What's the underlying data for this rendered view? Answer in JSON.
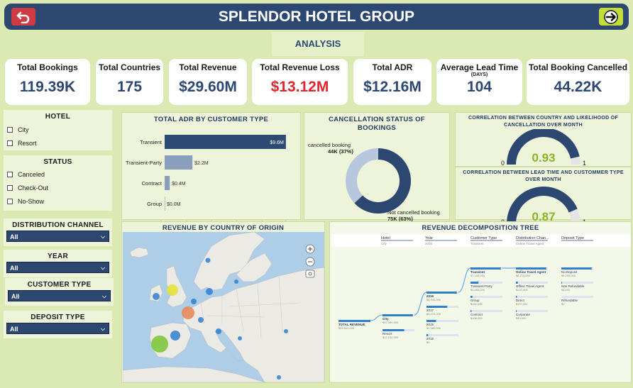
{
  "header": {
    "title": "SPLENDOR HOTEL GROUP",
    "back_icon": "back-arrow-icon",
    "forward_icon": "forward-arrow-icon",
    "page_button": "ANALYSIS"
  },
  "kpis": [
    {
      "label": "Total Bookings",
      "value": "119.39K"
    },
    {
      "label": "Total Countries",
      "value": "175"
    },
    {
      "label": "Total Revenue",
      "value": "$29.60M"
    },
    {
      "label": "Total Revenue Loss",
      "value": "$13.12M"
    },
    {
      "label": "Total ADR",
      "value": "$12.16M"
    },
    {
      "label": "Average Lead Time",
      "sub": "(DAYS)",
      "value": "104"
    },
    {
      "label": "Total Booking Cancelled",
      "value": "44.22K"
    }
  ],
  "slicers": {
    "hotel": {
      "title": "HOTEL",
      "options": [
        "City",
        "Resort"
      ]
    },
    "status": {
      "title": "STATUS",
      "options": [
        "Canceled",
        "Check-Out",
        "No-Show"
      ]
    },
    "distribution": {
      "title": "DISTRIBUTION CHANNEL",
      "value": "All"
    },
    "year": {
      "title": "YEAR",
      "value": "All"
    },
    "customer": {
      "title": "CUSTOMER TYPE",
      "value": "All"
    },
    "deposit": {
      "title": "DEPOSIT TYPE",
      "value": "All"
    }
  },
  "adr_chart": {
    "title": "TOTAL ADR BY CUSTOMER TYPE",
    "x_ticks": [
      "$0M",
      "$2M",
      "$4M",
      "$6M",
      "$8M",
      "$10M"
    ]
  },
  "cancel_chart": {
    "title": "CANCELLATION STATUS OF BOOKINGS",
    "label_cancelled": "cancelled booking",
    "value_cancelled": "44K (37%)",
    "label_not": "Not cancelled booking",
    "value_not": "75K (63%)"
  },
  "gauge1": {
    "title": "CORRELATION BETWEEN COUNTRY AND LIKELIHOOD OF CANCELLATION OVER MONTH",
    "value": "0.93",
    "min": "0",
    "max": "1",
    "fraction": 0.93
  },
  "gauge2": {
    "title": "CORRELATION BETWEEN LEAD TIME AND CUSTOMMER TYPE OVER MONTH",
    "value": "0.87",
    "min": "0",
    "max": "1",
    "fraction": 0.87
  },
  "map": {
    "title": "REVENUE BY COUNTRY OF ORIGIN",
    "zoom_in_icon": "zoom-in-icon",
    "zoom_out_icon": "zoom-out-icon",
    "locate_icon": "locate-icon"
  },
  "decomp": {
    "title": "REVENUE DECOMPOSITION TREE",
    "columns": [
      {
        "label": "Hotel",
        "value": "City"
      },
      {
        "label": "Year",
        "value": "2016"
      },
      {
        "label": "Customer Type",
        "value": "Transient"
      },
      {
        "label": "Distribution Chan...",
        "value": "Online Travel Agent"
      },
      {
        "label": "Deposit Type",
        "value": ""
      }
    ],
    "root": {
      "label": "TOTAL REVENUE",
      "value": "$29,600,000"
    },
    "hotels": [
      {
        "label": "City",
        "value": "$17,390,000"
      },
      {
        "label": "Resort",
        "value": "$12,210,000"
      }
    ],
    "years": [
      {
        "label": "2016",
        "value": "$8,940,000"
      },
      {
        "label": "2017",
        "value": "$6,070,000"
      },
      {
        "label": "2015",
        "value": "$2,380,000"
      },
      {
        "label": "2018",
        "value": "$0"
      }
    ],
    "customers": [
      {
        "label": "Transient",
        "value": "$7,100,000"
      },
      {
        "label": "Transient-Party",
        "value": "$1,450,000"
      },
      {
        "label": "Group",
        "value": "$282,000"
      },
      {
        "label": "Contract",
        "value": "$108,000"
      }
    ],
    "channels": [
      {
        "label": "Online Travel Agent",
        "value": "$6,710,000"
      },
      {
        "label": "Offline Travel Agent",
        "value": "$240,000"
      },
      {
        "label": "Direct",
        "value": "$110,000"
      },
      {
        "label": "Corporate",
        "value": "$40,000"
      }
    ],
    "deposits": [
      {
        "label": "No Deposit",
        "value": "$6,709,000"
      },
      {
        "label": "Non Refundable",
        "value": "$1,000"
      },
      {
        "label": "Refundable",
        "value": "$0"
      }
    ]
  },
  "chart_data": [
    {
      "type": "bar",
      "title": "TOTAL ADR BY CUSTOMER TYPE",
      "orientation": "horizontal",
      "categories": [
        "Transient",
        "Transient-Party",
        "Contract",
        "Group"
      ],
      "values": [
        9.6,
        2.2,
        0.4,
        0.0
      ],
      "labels": [
        "$9.6M",
        "$2.2M",
        "$0.4M",
        "$0.0M"
      ],
      "xlim": [
        0,
        10
      ],
      "x_ticks": [
        "$0M",
        "$2M",
        "$4M",
        "$6M",
        "$8M",
        "$10M"
      ]
    },
    {
      "type": "pie",
      "title": "CANCELLATION STATUS OF BOOKINGS",
      "donut": true,
      "categories": [
        "cancelled booking",
        "Not cancelled booking"
      ],
      "values": [
        44,
        75
      ],
      "percent": [
        37,
        63
      ]
    }
  ],
  "colors": {
    "navy": "#2c4770",
    "bar": "#2d4a74",
    "bar_light": "#8a9fbd",
    "donut_light": "#b7c8de",
    "gauge_empty": "#e4e4e4",
    "gauge_value": "#8ab526",
    "red": "#e0262c"
  }
}
